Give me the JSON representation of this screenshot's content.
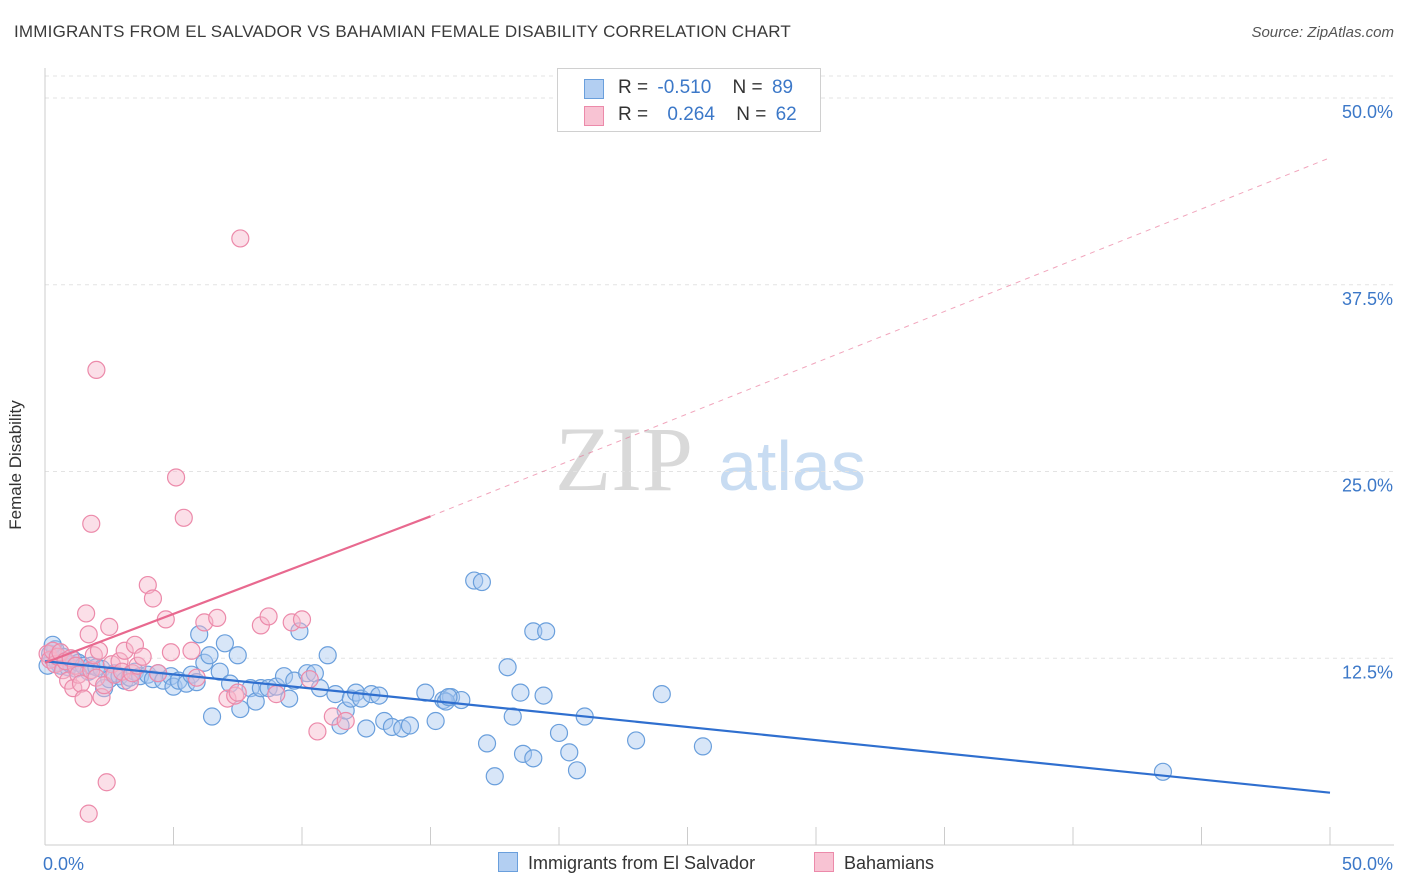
{
  "header": {
    "title": "IMMIGRANTS FROM EL SALVADOR VS BAHAMIAN FEMALE DISABILITY CORRELATION CHART",
    "source": "Source: ZipAtlas.com"
  },
  "legend": {
    "r_label": "R =",
    "n_label": "N =",
    "rows": [
      {
        "r": "-0.510",
        "n": "89"
      },
      {
        "r": "0.264",
        "n": "62"
      }
    ]
  },
  "watermark": {
    "zip": "ZIP",
    "atlas": "atlas"
  },
  "colors": {
    "blue_fill": "#a9c8ef",
    "blue_stroke": "#6a9fdc",
    "blue_line": "#2f6fcf",
    "pink_fill": "#f6b9cc",
    "pink_stroke": "#ec8aaa",
    "pink_line": "#e8698f",
    "tick_text": "#3c78c8",
    "grid": "#e3e3e3"
  },
  "chart_data": {
    "type": "scatter",
    "title": "IMMIGRANTS FROM EL SALVADOR VS BAHAMIAN FEMALE DISABILITY CORRELATION CHART",
    "xlabel": "",
    "ylabel": "Female Disability",
    "xlim": [
      0,
      50
    ],
    "ylim": [
      0,
      50
    ],
    "x_tick_labels": [
      "0.0%",
      "50.0%"
    ],
    "y_ticks": [
      12.5,
      25.0,
      37.5,
      50.0
    ],
    "y_tick_labels": [
      "12.5%",
      "25.0%",
      "37.5%",
      "50.0%"
    ],
    "grid": true,
    "legend_position": "top-center",
    "series": [
      {
        "name": "Immigrants from El Salvador",
        "color": "#a9c8ef",
        "trend": {
          "x": [
            0,
            50
          ],
          "y": [
            12.3,
            3.5
          ],
          "style": "solid"
        },
        "points": [
          [
            0.2,
            12.8
          ],
          [
            0.3,
            12.5
          ],
          [
            0.4,
            13.1
          ],
          [
            0.5,
            12.2
          ],
          [
            0.6,
            12.0
          ],
          [
            0.7,
            12.6
          ],
          [
            0.8,
            12.3
          ],
          [
            0.9,
            11.9
          ],
          [
            1.0,
            12.1
          ],
          [
            1.1,
            12.4
          ],
          [
            1.2,
            11.8
          ],
          [
            1.3,
            12.2
          ],
          [
            1.5,
            12.0
          ],
          [
            1.7,
            11.6
          ],
          [
            1.8,
            12.0
          ],
          [
            2.0,
            11.9
          ],
          [
            2.2,
            11.8
          ],
          [
            2.3,
            10.5
          ],
          [
            2.5,
            11.1
          ],
          [
            2.7,
            11.5
          ],
          [
            2.9,
            11.3
          ],
          [
            3.1,
            11.0
          ],
          [
            3.3,
            11.2
          ],
          [
            3.5,
            11.6
          ],
          [
            3.7,
            11.3
          ],
          [
            4.0,
            11.4
          ],
          [
            4.2,
            11.1
          ],
          [
            4.4,
            11.5
          ],
          [
            4.6,
            11.0
          ],
          [
            4.9,
            11.3
          ],
          [
            5.0,
            10.6
          ],
          [
            5.2,
            11.0
          ],
          [
            5.5,
            10.8
          ],
          [
            5.7,
            11.4
          ],
          [
            5.9,
            10.9
          ],
          [
            6.0,
            14.1
          ],
          [
            6.2,
            12.2
          ],
          [
            6.4,
            12.7
          ],
          [
            6.5,
            8.6
          ],
          [
            6.8,
            11.6
          ],
          [
            7.0,
            13.5
          ],
          [
            7.2,
            10.8
          ],
          [
            7.5,
            12.7
          ],
          [
            7.6,
            9.1
          ],
          [
            8.0,
            10.5
          ],
          [
            8.2,
            9.6
          ],
          [
            8.4,
            10.5
          ],
          [
            8.7,
            10.5
          ],
          [
            9.0,
            10.6
          ],
          [
            9.3,
            11.3
          ],
          [
            9.5,
            9.8
          ],
          [
            9.7,
            11.0
          ],
          [
            9.9,
            14.3
          ],
          [
            10.2,
            11.5
          ],
          [
            10.5,
            11.5
          ],
          [
            10.7,
            10.5
          ],
          [
            11.0,
            12.7
          ],
          [
            11.3,
            10.1
          ],
          [
            11.5,
            8.0
          ],
          [
            11.7,
            9.0
          ],
          [
            11.9,
            9.8
          ],
          [
            12.1,
            10.2
          ],
          [
            12.3,
            9.8
          ],
          [
            12.5,
            7.8
          ],
          [
            12.7,
            10.1
          ],
          [
            13.0,
            10.0
          ],
          [
            13.2,
            8.3
          ],
          [
            13.5,
            7.9
          ],
          [
            13.9,
            7.8
          ],
          [
            14.2,
            8.0
          ],
          [
            14.8,
            10.2
          ],
          [
            15.2,
            8.3
          ],
          [
            15.5,
            9.7
          ],
          [
            15.8,
            9.9
          ],
          [
            16.2,
            9.7
          ],
          [
            16.7,
            17.7
          ],
          [
            17.0,
            17.6
          ],
          [
            17.2,
            6.8
          ],
          [
            17.5,
            4.6
          ],
          [
            18.0,
            11.9
          ],
          [
            18.2,
            8.6
          ],
          [
            18.6,
            6.1
          ],
          [
            19.0,
            14.3
          ],
          [
            19.4,
            10.0
          ],
          [
            19.5,
            14.3
          ],
          [
            20.0,
            7.5
          ],
          [
            20.4,
            6.2
          ],
          [
            20.7,
            5.0
          ],
          [
            21.0,
            8.6
          ]
        ],
        "extra_points": [
          [
            23.0,
            7.0
          ],
          [
            24.0,
            10.1
          ],
          [
            25.6,
            6.6
          ],
          [
            43.5,
            4.9
          ],
          [
            0.1,
            12.0
          ],
          [
            0.3,
            13.4
          ],
          [
            19.0,
            5.8
          ],
          [
            15.6,
            9.6
          ],
          [
            15.7,
            9.9
          ],
          [
            18.5,
            10.2
          ]
        ]
      },
      {
        "name": "Bahamians",
        "color": "#f6b9cc",
        "trend": {
          "x": [
            0,
            15
          ],
          "y": [
            12.2,
            22.0
          ],
          "style": "solid",
          "dashed_extension": {
            "x": [
              15,
              50
            ],
            "y": [
              22.0,
              46.0
            ]
          }
        },
        "points": [
          [
            0.1,
            12.8
          ],
          [
            0.2,
            12.4
          ],
          [
            0.3,
            13.0
          ],
          [
            0.4,
            12.1
          ],
          [
            0.5,
            12.6
          ],
          [
            0.6,
            12.9
          ],
          [
            0.7,
            11.7
          ],
          [
            0.8,
            12.3
          ],
          [
            0.9,
            11.0
          ],
          [
            1.0,
            12.5
          ],
          [
            1.1,
            10.5
          ],
          [
            1.2,
            12.0
          ],
          [
            1.3,
            11.4
          ],
          [
            1.4,
            10.8
          ],
          [
            1.5,
            9.8
          ],
          [
            1.6,
            15.5
          ],
          [
            1.7,
            14.1
          ],
          [
            1.8,
            11.7
          ],
          [
            1.9,
            12.7
          ],
          [
            2.0,
            11.2
          ],
          [
            2.1,
            13.0
          ],
          [
            2.2,
            9.9
          ],
          [
            2.3,
            10.7
          ],
          [
            2.5,
            14.6
          ],
          [
            2.6,
            12.1
          ],
          [
            2.7,
            11.4
          ],
          [
            2.9,
            12.3
          ],
          [
            3.0,
            11.6
          ],
          [
            3.1,
            13.0
          ],
          [
            3.3,
            10.9
          ],
          [
            3.4,
            11.5
          ],
          [
            3.5,
            13.4
          ],
          [
            3.6,
            12.0
          ],
          [
            3.8,
            12.6
          ],
          [
            4.0,
            17.4
          ],
          [
            4.2,
            16.5
          ],
          [
            4.4,
            11.5
          ],
          [
            4.7,
            15.1
          ],
          [
            4.9,
            12.9
          ],
          [
            5.1,
            24.6
          ],
          [
            5.4,
            21.9
          ],
          [
            5.7,
            13.0
          ],
          [
            5.9,
            11.2
          ],
          [
            6.2,
            14.9
          ],
          [
            6.7,
            15.2
          ],
          [
            7.1,
            9.8
          ],
          [
            7.4,
            10.0
          ],
          [
            7.5,
            10.2
          ],
          [
            7.6,
            40.6
          ],
          [
            8.4,
            14.7
          ],
          [
            8.7,
            15.3
          ],
          [
            9.0,
            10.1
          ],
          [
            9.6,
            14.9
          ],
          [
            10.0,
            15.1
          ],
          [
            10.3,
            11.1
          ],
          [
            10.6,
            7.6
          ],
          [
            11.2,
            8.6
          ],
          [
            11.7,
            8.3
          ],
          [
            2.0,
            31.8
          ],
          [
            1.8,
            21.5
          ],
          [
            2.4,
            4.2
          ],
          [
            1.7,
            2.1
          ]
        ]
      }
    ]
  },
  "bottom_legend": [
    {
      "label": "Immigrants from El Salvador"
    },
    {
      "label": "Bahamians"
    }
  ]
}
